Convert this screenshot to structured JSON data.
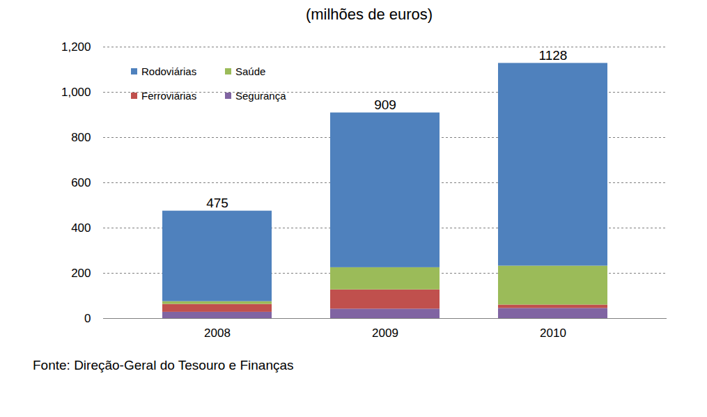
{
  "chart_data": {
    "type": "bar",
    "stacked": true,
    "title": "(milhões de euros)",
    "caption": "Fonte: Direção-Geral do Tesouro e Finanças",
    "categories": [
      "2008",
      "2009",
      "2010"
    ],
    "series": [
      {
        "name": "Rodoviárias",
        "color": "#4f81bd",
        "values": [
          400,
          684,
          896
        ]
      },
      {
        "name": "Saúde",
        "color": "#9bbb59",
        "values": [
          12,
          98,
          172
        ]
      },
      {
        "name": "Ferroviárias",
        "color": "#c0504d",
        "values": [
          35,
          85,
          15
        ]
      },
      {
        "name": "Segurança",
        "color": "#8064a2",
        "values": [
          28,
          42,
          45
        ]
      }
    ],
    "totals": [
      475,
      909,
      1128
    ],
    "ylim": [
      0,
      1200
    ],
    "yticks": [
      0,
      200,
      400,
      600,
      800,
      1000,
      1200
    ],
    "grid": true,
    "legend": "top-left"
  }
}
